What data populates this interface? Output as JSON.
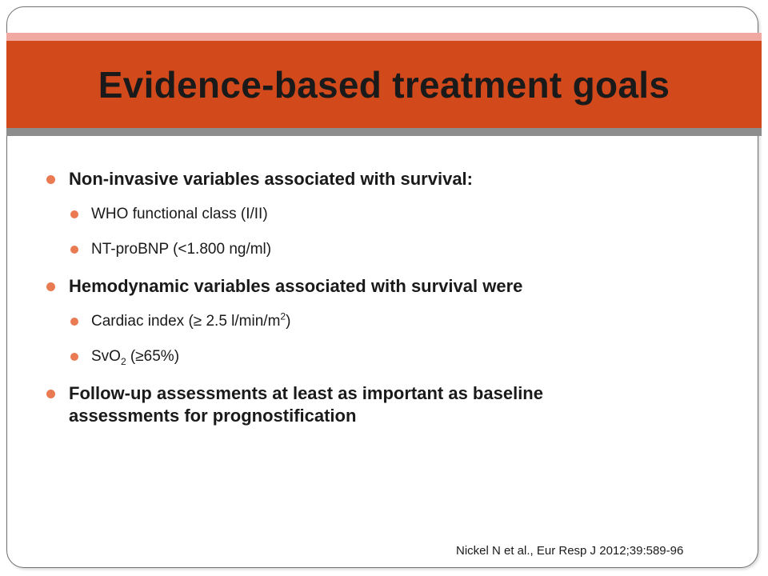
{
  "title": "Evidence-based treatment goals",
  "bullets": {
    "b1": "Non-invasive variables associated with survival:",
    "b1_1": "WHO functional class (I/II)",
    "b1_2": "NT-proBNP (<1.800 ng/ml)",
    "b2": "Hemodynamic variables associated with survival were",
    "b2_1_pre": "Cardiac index (≥ 2.5 l/min/m",
    "b2_1_sup": "2",
    "b2_1_post": ")",
    "b2_2_pre": "SvO",
    "b2_2_sub": "2",
    "b2_2_post": " (≥65%)",
    "b3_line1": "Follow-up assessments at least as important as baseline",
    "b3_line2": "assessments for prognostification"
  },
  "citation": "Nickel N et al., Eur Resp J 2012;39:589-96",
  "colors": {
    "title_band": "#d24a1c",
    "title_stripe_top": "#f0a8a0",
    "title_stripe_bottom": "#8d8d8d",
    "bullet": "#e97a52"
  }
}
